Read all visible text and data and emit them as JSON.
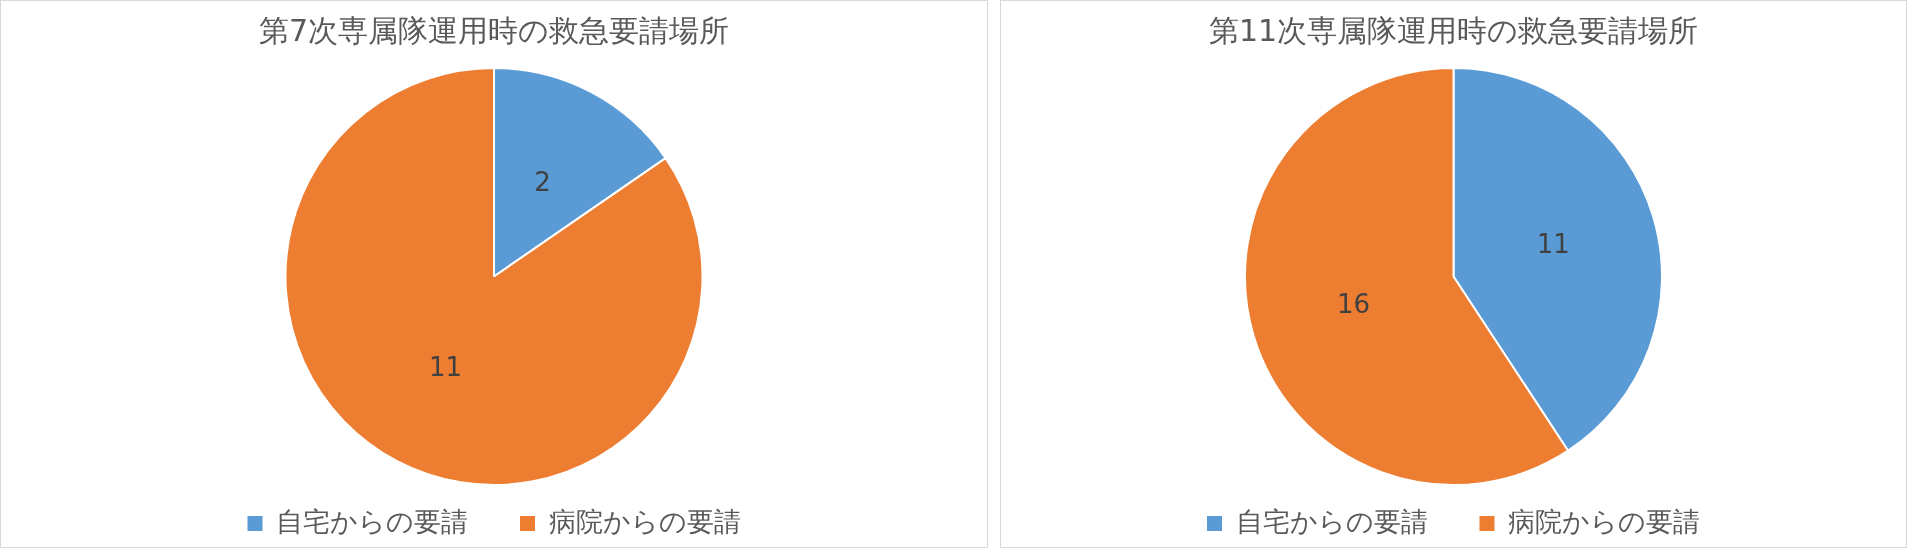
{
  "chart_data": [
    {
      "type": "pie",
      "title": "第7次専属隊運用時の救急要請場所",
      "categories": [
        "自宅からの要請",
        "病院からの要請"
      ],
      "values": [
        2,
        11
      ],
      "colors": [
        "#5b9bd5",
        "#ed7d31"
      ],
      "data_labels": true,
      "legend": "bottom"
    },
    {
      "type": "pie",
      "title": "第11次専属隊運用時の救急要請場所",
      "categories": [
        "自宅からの要請",
        "病院からの要請"
      ],
      "values": [
        11,
        16
      ],
      "colors": [
        "#5b9bd5",
        "#ed7d31"
      ],
      "data_labels": true,
      "legend": "bottom"
    }
  ]
}
